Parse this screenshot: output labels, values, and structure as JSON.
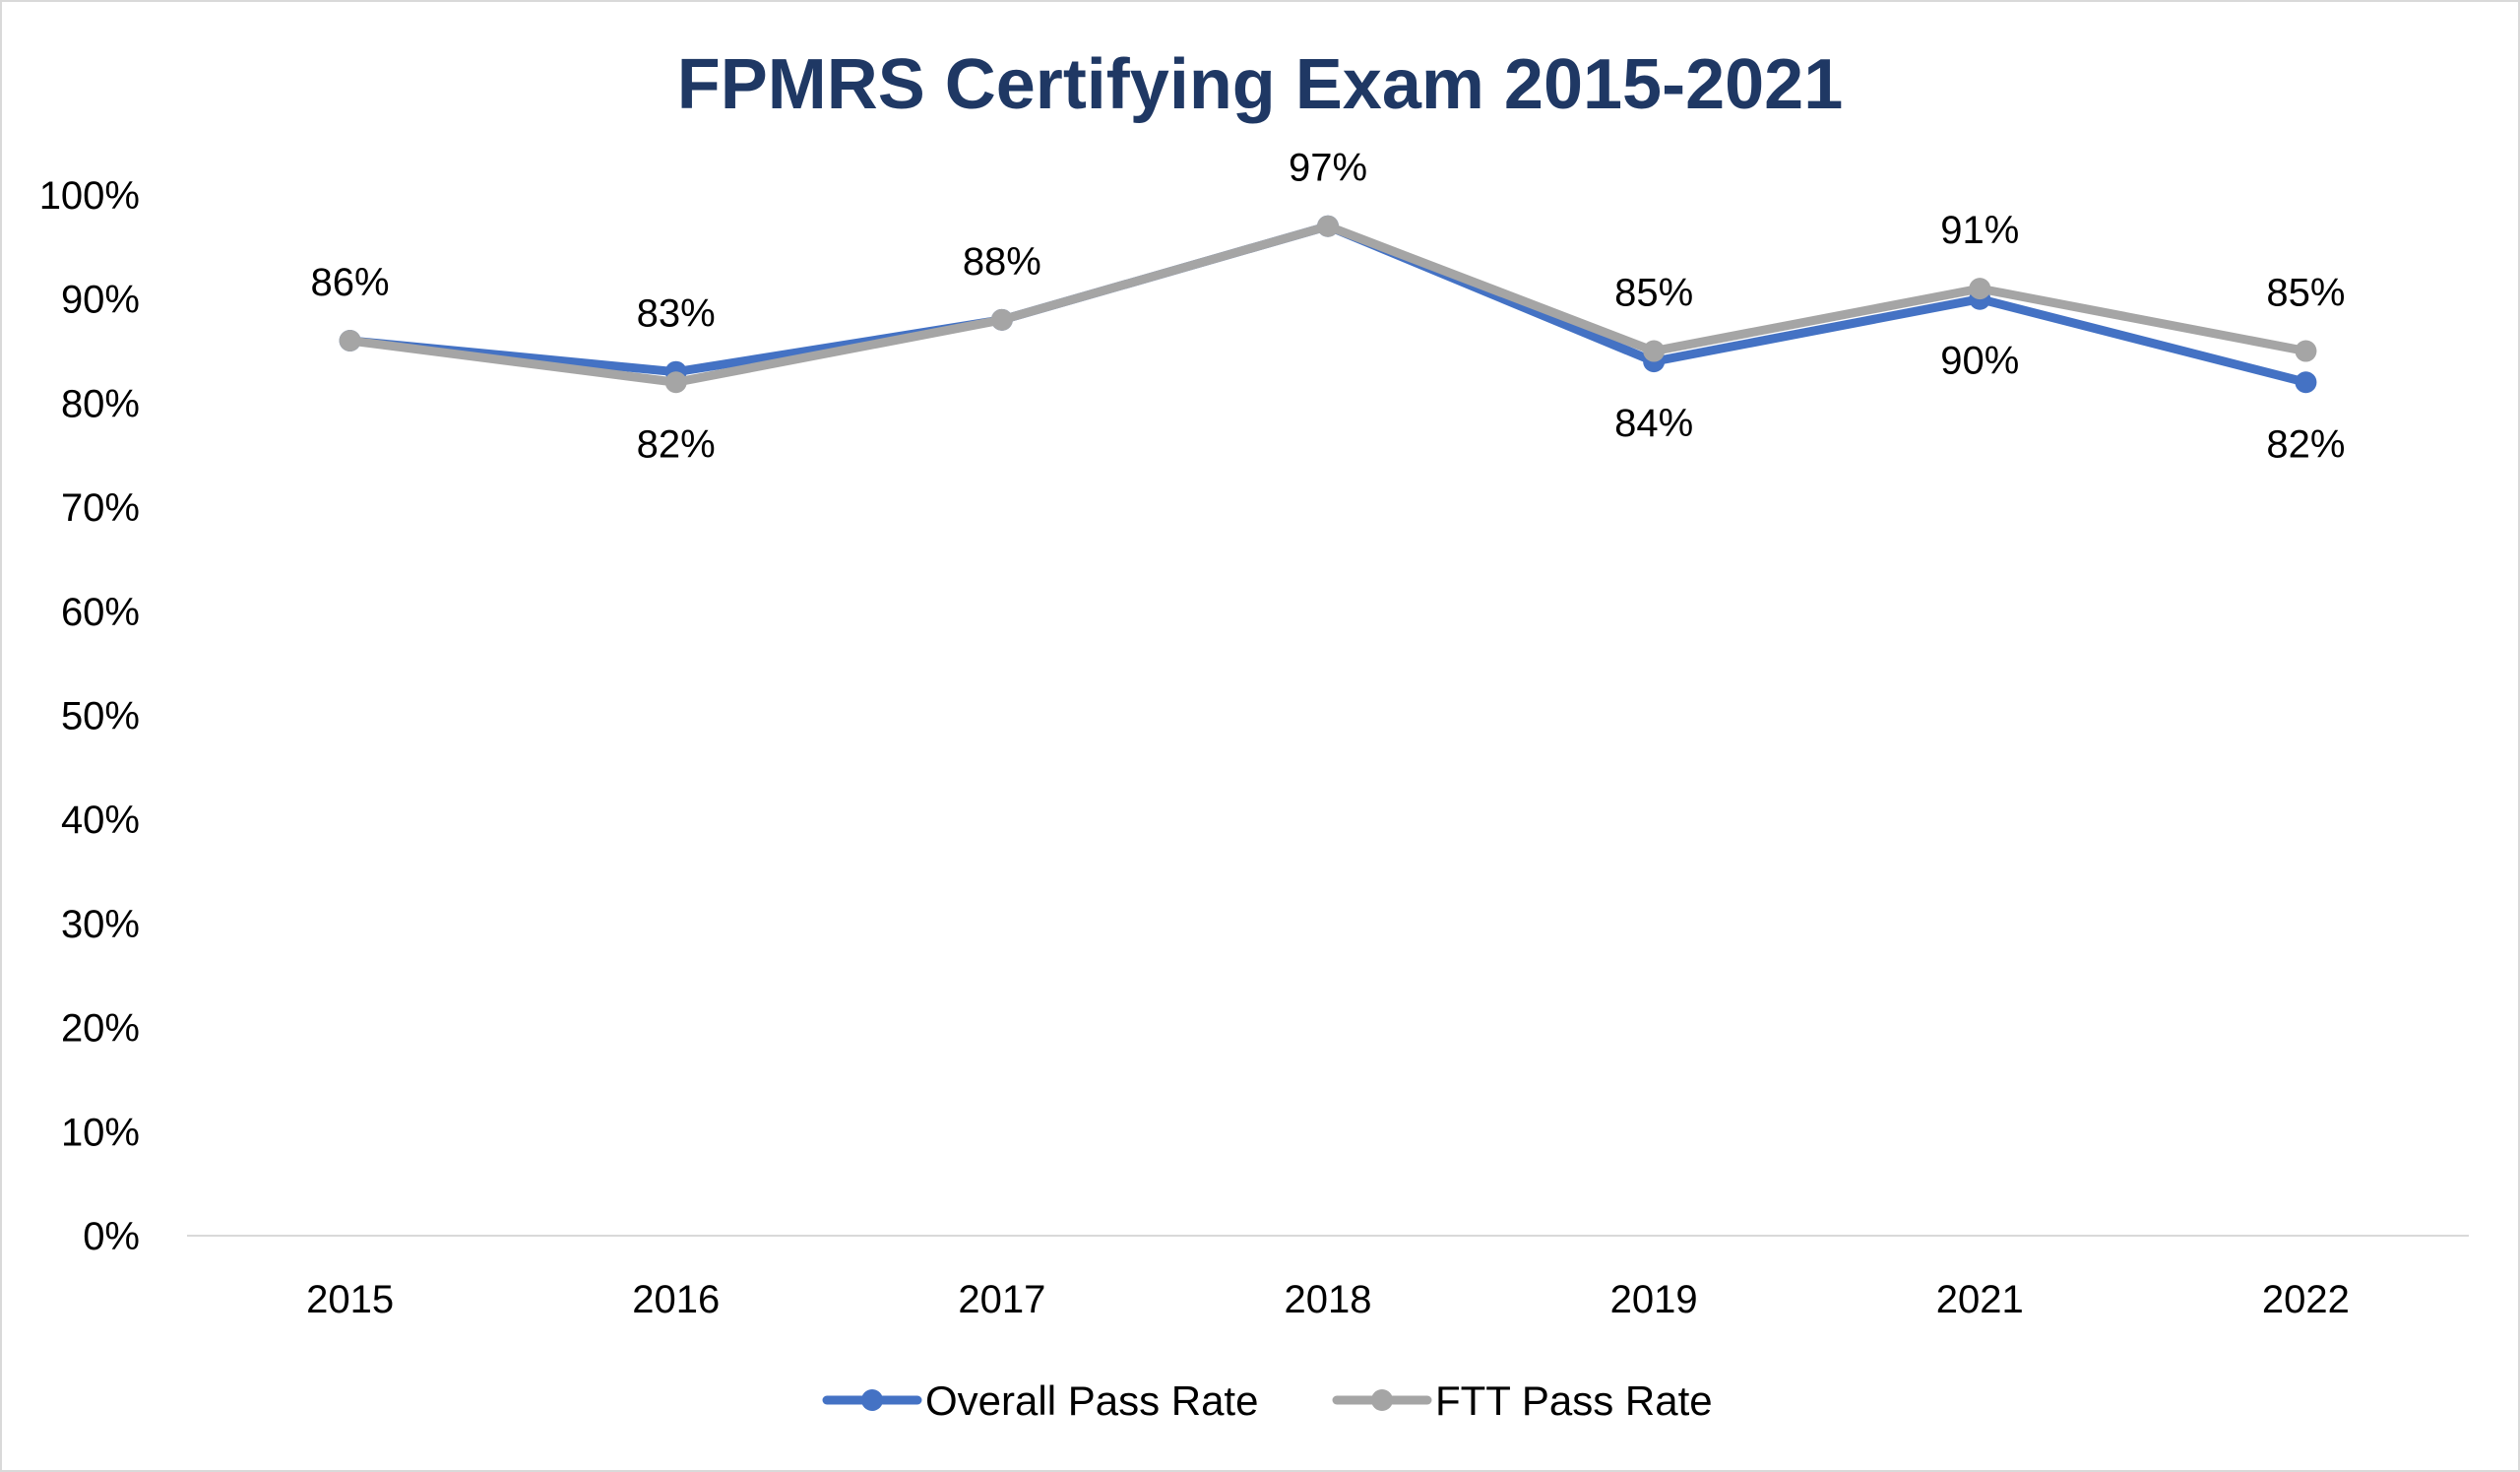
{
  "chart_data": {
    "type": "line",
    "title": "FPMRS Certifying Exam 2015-2021",
    "categories": [
      "2015",
      "2016",
      "2017",
      "2018",
      "2019",
      "2021",
      "2022"
    ],
    "ylim": [
      0,
      100
    ],
    "y_ticks": [
      "0%",
      "10%",
      "20%",
      "30%",
      "40%",
      "50%",
      "60%",
      "70%",
      "80%",
      "90%",
      "100%"
    ],
    "grid": false,
    "legend_position": "bottom",
    "series": [
      {
        "name": "Overall Pass Rate",
        "color": "#4472c4",
        "values": [
          86,
          83,
          88,
          97,
          84,
          90,
          82
        ],
        "labels": [
          "",
          "83%",
          "",
          "",
          "84%",
          "90%",
          "82%"
        ]
      },
      {
        "name": "FTT Pass Rate",
        "color": "#a5a5a5",
        "values": [
          86,
          82,
          88,
          97,
          85,
          91,
          85
        ],
        "labels": [
          "86%",
          "82%",
          "88%",
          "97%",
          "85%",
          "91%",
          "85%"
        ]
      }
    ]
  }
}
